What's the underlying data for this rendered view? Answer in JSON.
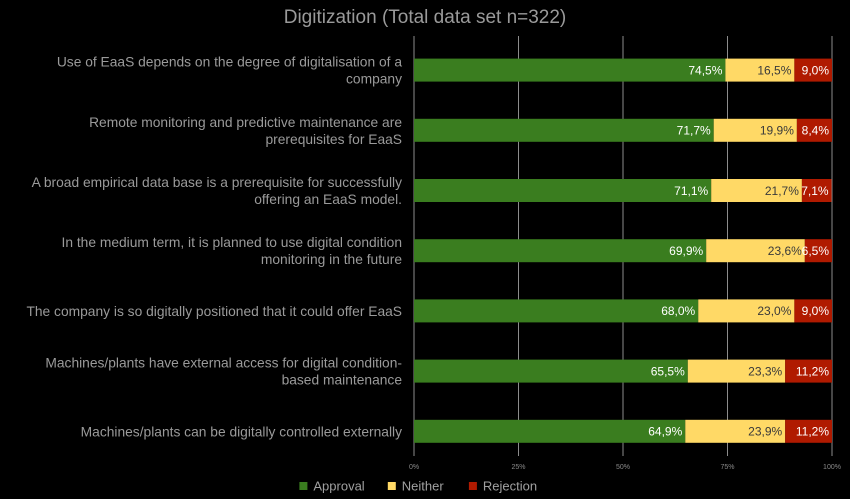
{
  "chart_data": {
    "type": "bar",
    "orientation": "horizontal",
    "stacked": true,
    "title": "Digitization (Total data set n=322)",
    "categories": [
      [
        "Use of EaaS depends on the degree of digitalisation of a",
        "company"
      ],
      [
        "Remote monitoring and predictive maintenance are",
        "prerequisites for EaaS"
      ],
      [
        "A broad empirical data base is a prerequisite for successfully",
        "offering an EaaS model."
      ],
      [
        "In the medium term, it is planned to use digital condition",
        "monitoring in the future"
      ],
      [
        "The company is so digitally positioned that it could offer EaaS"
      ],
      [
        "Machines/plants have external access for digital condition-",
        "based maintenance"
      ],
      [
        "Machines/plants can be digitally controlled externally"
      ]
    ],
    "series": [
      {
        "name": "Approval",
        "color": "#3a7d1f",
        "values": [
          74.5,
          71.7,
          71.1,
          69.9,
          68.0,
          65.5,
          64.9
        ],
        "labels": [
          "74,5%",
          "71,7%",
          "71,1%",
          "69,9%",
          "68,0%",
          "65,5%",
          "64,9%"
        ]
      },
      {
        "name": "Neither",
        "color": "#ffd966",
        "values": [
          16.5,
          19.9,
          21.7,
          23.6,
          23.0,
          23.3,
          23.9
        ],
        "labels": [
          "16,5%",
          "19,9%",
          "21,7%",
          "23,6%",
          "23,0%",
          "23,3%",
          "23,9%"
        ]
      },
      {
        "name": "Rejection",
        "color": "#b01a00",
        "values": [
          9.0,
          8.4,
          7.1,
          6.5,
          9.0,
          11.2,
          11.2
        ],
        "labels": [
          "9,0%",
          "8,4%",
          "7,1%",
          "6,5%",
          "9,0%",
          "11,2%",
          "11,2%"
        ]
      }
    ],
    "xlim": [
      0,
      100
    ],
    "xticks": [
      0,
      25,
      50,
      75,
      100
    ],
    "xtick_labels": [
      "0%",
      "25%",
      "50%",
      "75%",
      "100%"
    ],
    "grid": true,
    "legend": "bottom"
  }
}
